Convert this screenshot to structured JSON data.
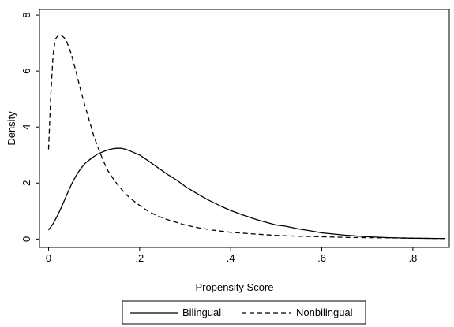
{
  "chart_data": {
    "type": "line",
    "title": "",
    "xlabel": "Propensity Score",
    "ylabel": "Density",
    "xlim": [
      -0.02,
      0.88
    ],
    "ylim": [
      -0.3,
      8.2
    ],
    "x_ticks": [
      0,
      0.2,
      0.4,
      0.6,
      0.8
    ],
    "x_tick_labels": [
      "0",
      ".2",
      ".4",
      ".6",
      ".8"
    ],
    "y_ticks": [
      0,
      2,
      4,
      6,
      8
    ],
    "y_tick_labels": [
      "0",
      "2",
      "4",
      "6",
      "8"
    ],
    "grid": false,
    "legend_position": "bottom",
    "series": [
      {
        "name": "Bilingual",
        "style": "solid",
        "color": "#000000",
        "x": [
          0.0,
          0.01,
          0.02,
          0.03,
          0.04,
          0.05,
          0.06,
          0.07,
          0.08,
          0.09,
          0.1,
          0.11,
          0.12,
          0.13,
          0.14,
          0.15,
          0.16,
          0.17,
          0.18,
          0.2,
          0.22,
          0.24,
          0.26,
          0.28,
          0.3,
          0.32,
          0.35,
          0.38,
          0.4,
          0.43,
          0.46,
          0.5,
          0.52,
          0.55,
          0.58,
          0.6,
          0.65,
          0.7,
          0.75,
          0.8,
          0.85,
          0.87
        ],
        "y": [
          0.32,
          0.55,
          0.85,
          1.2,
          1.58,
          1.95,
          2.25,
          2.5,
          2.7,
          2.83,
          2.95,
          3.05,
          3.12,
          3.18,
          3.22,
          3.24,
          3.24,
          3.2,
          3.14,
          3.0,
          2.78,
          2.55,
          2.32,
          2.12,
          1.88,
          1.68,
          1.4,
          1.16,
          1.02,
          0.84,
          0.68,
          0.5,
          0.46,
          0.36,
          0.28,
          0.22,
          0.14,
          0.08,
          0.05,
          0.03,
          0.02,
          0.02
        ]
      },
      {
        "name": "Nonbilingual",
        "style": "dashed",
        "color": "#000000",
        "x": [
          0.0,
          0.005,
          0.01,
          0.015,
          0.02,
          0.025,
          0.03,
          0.035,
          0.04,
          0.05,
          0.06,
          0.07,
          0.08,
          0.09,
          0.1,
          0.11,
          0.12,
          0.13,
          0.14,
          0.15,
          0.16,
          0.17,
          0.18,
          0.2,
          0.22,
          0.24,
          0.26,
          0.28,
          0.3,
          0.33,
          0.36,
          0.4,
          0.45,
          0.5,
          0.55,
          0.6,
          0.65,
          0.7,
          0.75,
          0.8,
          0.85,
          0.87
        ],
        "y": [
          3.2,
          5.2,
          6.6,
          7.15,
          7.25,
          7.28,
          7.25,
          7.18,
          7.05,
          6.6,
          6.0,
          5.35,
          4.75,
          4.2,
          3.65,
          3.2,
          2.8,
          2.45,
          2.2,
          1.98,
          1.78,
          1.6,
          1.45,
          1.2,
          0.98,
          0.82,
          0.7,
          0.6,
          0.5,
          0.4,
          0.32,
          0.24,
          0.18,
          0.13,
          0.1,
          0.08,
          0.06,
          0.05,
          0.04,
          0.03,
          0.02,
          0.02
        ]
      }
    ]
  }
}
